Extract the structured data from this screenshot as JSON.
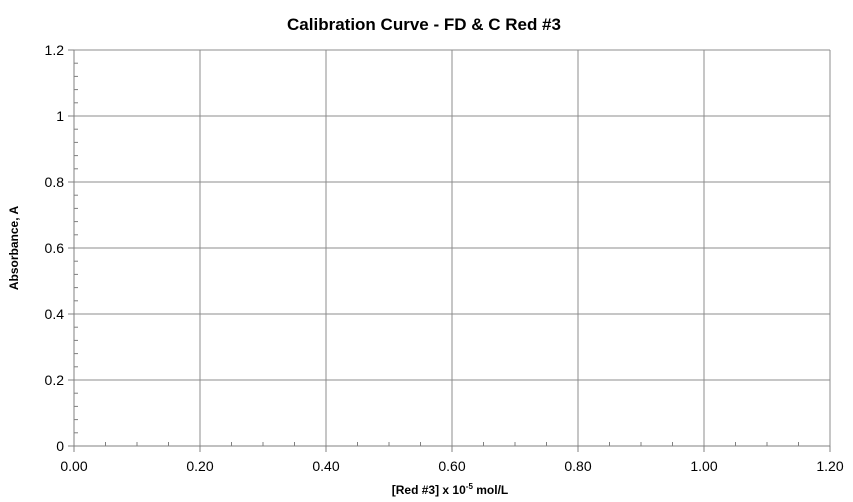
{
  "colors": {
    "grid": "#8c8c8c",
    "axis": "#808080",
    "text": "#000000",
    "background": "#ffffff"
  },
  "chart_data": {
    "type": "scatter",
    "title": "Calibration Curve - FD & C Red #3",
    "xlabel": {
      "prefix": "[Red #3] x 10",
      "superscript": "-5",
      "suffix": " mol/L"
    },
    "ylabel": "Absorbance, A",
    "xlim": [
      0,
      1.2
    ],
    "ylim": [
      0,
      1.2
    ],
    "x_major_ticks": [
      0,
      0.2,
      0.4,
      0.6,
      0.8,
      1.0,
      1.2
    ],
    "x_tick_labels": [
      "0.00",
      "0.20",
      "0.40",
      "0.60",
      "0.80",
      "1.00",
      "1.20"
    ],
    "x_minor_step": 0.05,
    "y_major_ticks": [
      0,
      0.2,
      0.4,
      0.6,
      0.8,
      1.0,
      1.2
    ],
    "y_tick_labels": [
      "0",
      "0.2",
      "0.4",
      "0.6",
      "0.8",
      "1",
      "1.2"
    ],
    "y_minor_step": 0.04,
    "grid": true,
    "series": []
  }
}
